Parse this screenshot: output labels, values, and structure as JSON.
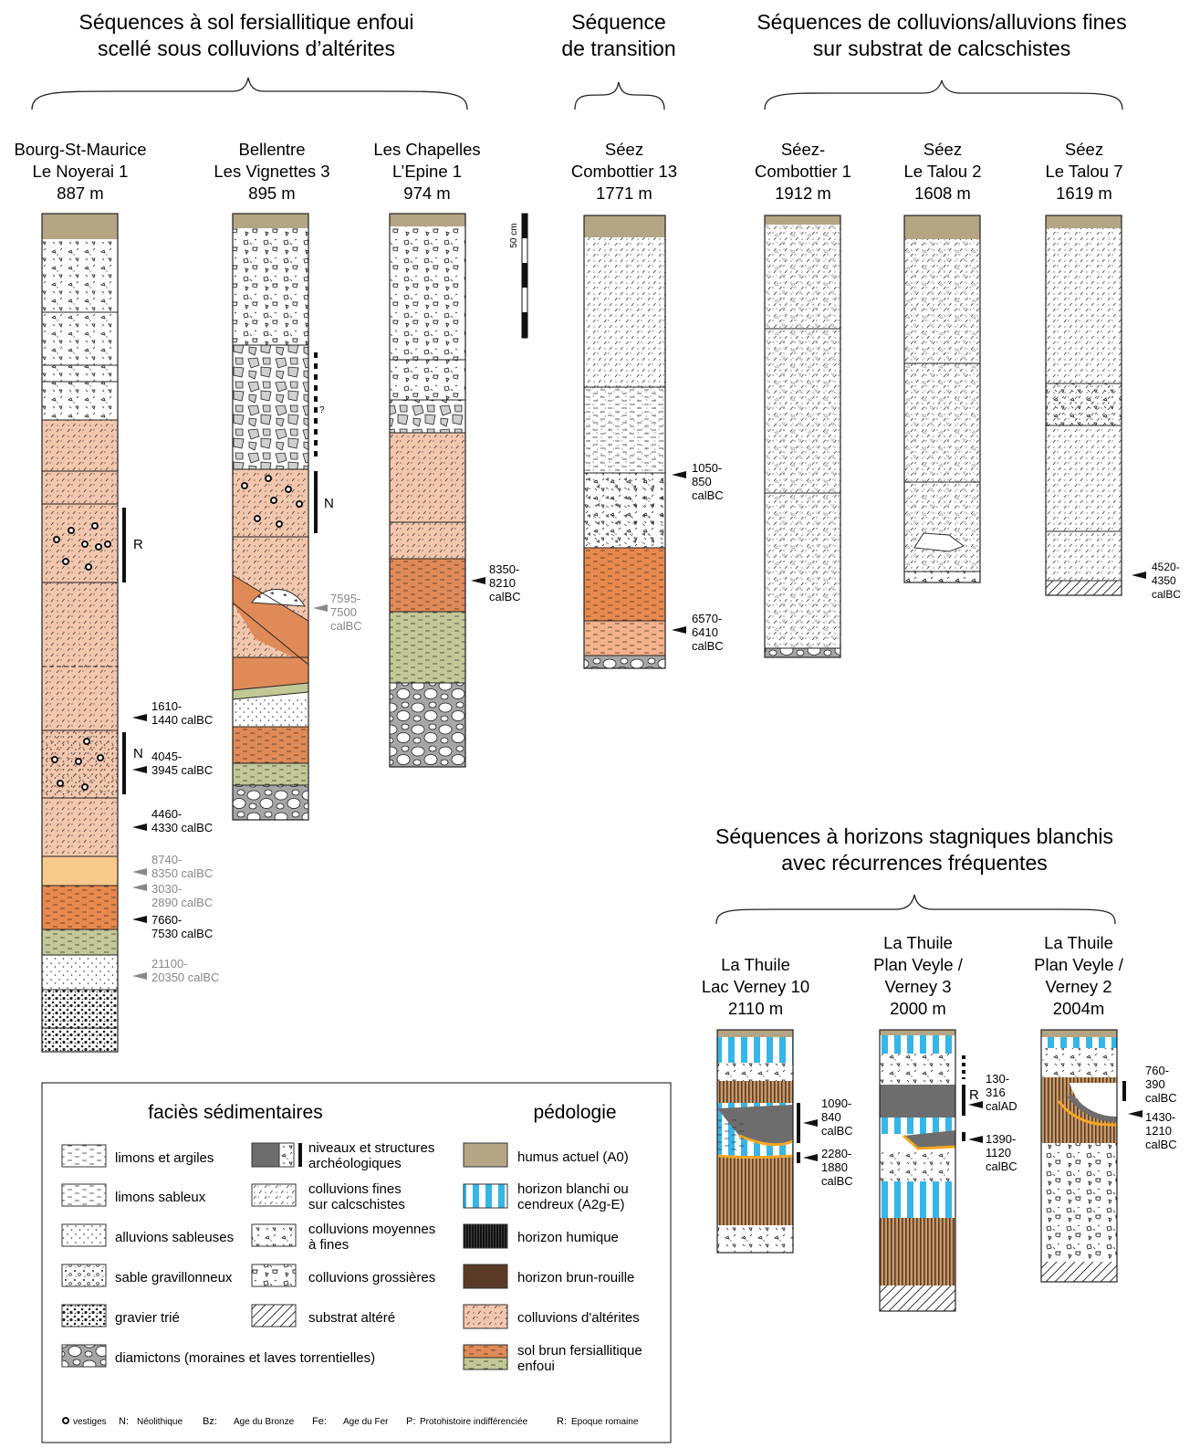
{
  "groups": [
    {
      "line1": "Séquences à sol fersiallitique enfoui",
      "line2": "scellé sous colluvions d’altérites"
    },
    {
      "line1": "Séquence",
      "line2": "de transition"
    },
    {
      "line1": "Séquences de colluvions/alluvions fines",
      "line2": "sur substrat de calcschistes"
    },
    {
      "line1": "Séquences à horizons stagniques blanchis",
      "line2": "avec récurrences fréquentes"
    }
  ],
  "sites": [
    {
      "l1": "Bourg-St-Maurice",
      "l2": "Le Noyerai 1",
      "l3": "887 m"
    },
    {
      "l1": "Bellentre",
      "l2": "Les Vignettes 3",
      "l3": "895 m"
    },
    {
      "l1": "Les Chapelles",
      "l2": "L’Epine 1",
      "l3": "974 m"
    },
    {
      "l1": "Séez",
      "l2": "Combottier 13",
      "l3": "1771 m"
    },
    {
      "l1": "Séez-",
      "l2": "Combottier 1",
      "l3": "1912 m"
    },
    {
      "l1": "Séez",
      "l2": "Le Talou 2",
      "l3": "1608 m"
    },
    {
      "l1": "Séez",
      "l2": "Le Talou 7",
      "l3": "1619 m"
    },
    {
      "l1": "La Thuile",
      "l2": "Lac Verney 10",
      "l3": "2110 m"
    },
    {
      "l1": "La Thuile",
      "l2": "Plan Veyle /",
      "l3": "Verney 3",
      "l4": "2000 m"
    },
    {
      "l1": "La Thuile",
      "l2": "Plan Veyle /",
      "l3": "Verney 2",
      "l4": "2004m"
    }
  ],
  "scale_label": "50 cm",
  "period_marks": {
    "noyerai_r": "R",
    "noyerai_n": "N",
    "vignettes_n": "N",
    "vignettes_q": "?",
    "verney3_r": "R"
  },
  "dates": {
    "d1": {
      "a": "1610-",
      "b": "1440 calBC"
    },
    "d2": {
      "a": "4045-",
      "b": "3945 calBC"
    },
    "d3": {
      "a": "4460-",
      "b": "4330 calBC"
    },
    "d4": {
      "a": "8740-",
      "b": "8350 calBC"
    },
    "d5": {
      "a": "3030-",
      "b": "2890 calBC"
    },
    "d6": {
      "a": "7660-",
      "b": "7530 calBC"
    },
    "d7": {
      "a": "21100-",
      "b": "20350 calBC"
    },
    "d8": {
      "a": "7595-",
      "b": "7500",
      "c": "calBC"
    },
    "d9": {
      "a": "8350-",
      "b": "8210",
      "c": "calBC"
    },
    "d10": {
      "a": "1050-",
      "b": "850",
      "c": "calBC"
    },
    "d11": {
      "a": "6570-",
      "b": "6410",
      "c": "calBC"
    },
    "d12": {
      "a": "4520-",
      "b": "4350",
      "c": "calBC"
    },
    "d13": {
      "a": "1090-",
      "b": "840",
      "c": "calBC"
    },
    "d14": {
      "a": "2280-",
      "b": "1880",
      "c": "calBC"
    },
    "d15": {
      "a": "130-",
      "b": "316",
      "c": "calAD"
    },
    "d16": {
      "a": "1390-",
      "b": "1120",
      "c": "calBC"
    },
    "d17": {
      "a": "760-",
      "b": "390",
      "c": "calBC"
    },
    "d18": {
      "a": "1430-",
      "b": "1210",
      "c": "calBC"
    }
  },
  "legend": {
    "head_left": "faciès sédimentaires",
    "head_right": "pédologie",
    "items": {
      "limons": "limons et argiles",
      "limsab": "limons sableux",
      "allsab": "alluvions sableuses",
      "sabgrav": "sable gravillonneux",
      "gravier": "gravier trié",
      "diam": "diamictons (moraines et laves torrentielles)",
      "arch1": "niveaux et structures",
      "arch2": "archéologiques",
      "colfin1": "colluvions fines",
      "colfin2": "sur calcschistes",
      "colmoy1": "colluvions moyennes",
      "colmoy2": "à fines",
      "colgro": "colluvions grossières",
      "substrat": "substrat altéré",
      "humus": "humus  actuel (A0)",
      "blanchi1": "horizon blanchi ou",
      "blanchi2": "cendreux (A2g-E)",
      "humique": "horizon humique",
      "brun": "horizon brun-rouille",
      "alterites": "colluvions d'altérites",
      "sol1": "sol brun fersiallitique",
      "sol2": "enfoui"
    },
    "foot": {
      "vestiges": "vestiges",
      "n": "N:",
      "n_t": "Néolithique",
      "bz": "Bz:",
      "bz_t": "Age du Bronze",
      "fe": "Fe:",
      "fe_t": "Age du Fer",
      "p": "P:",
      "p_t": "Protohistoire indifférenciée",
      "r": "R:",
      "r_t": "Epoque romaine"
    }
  }
}
